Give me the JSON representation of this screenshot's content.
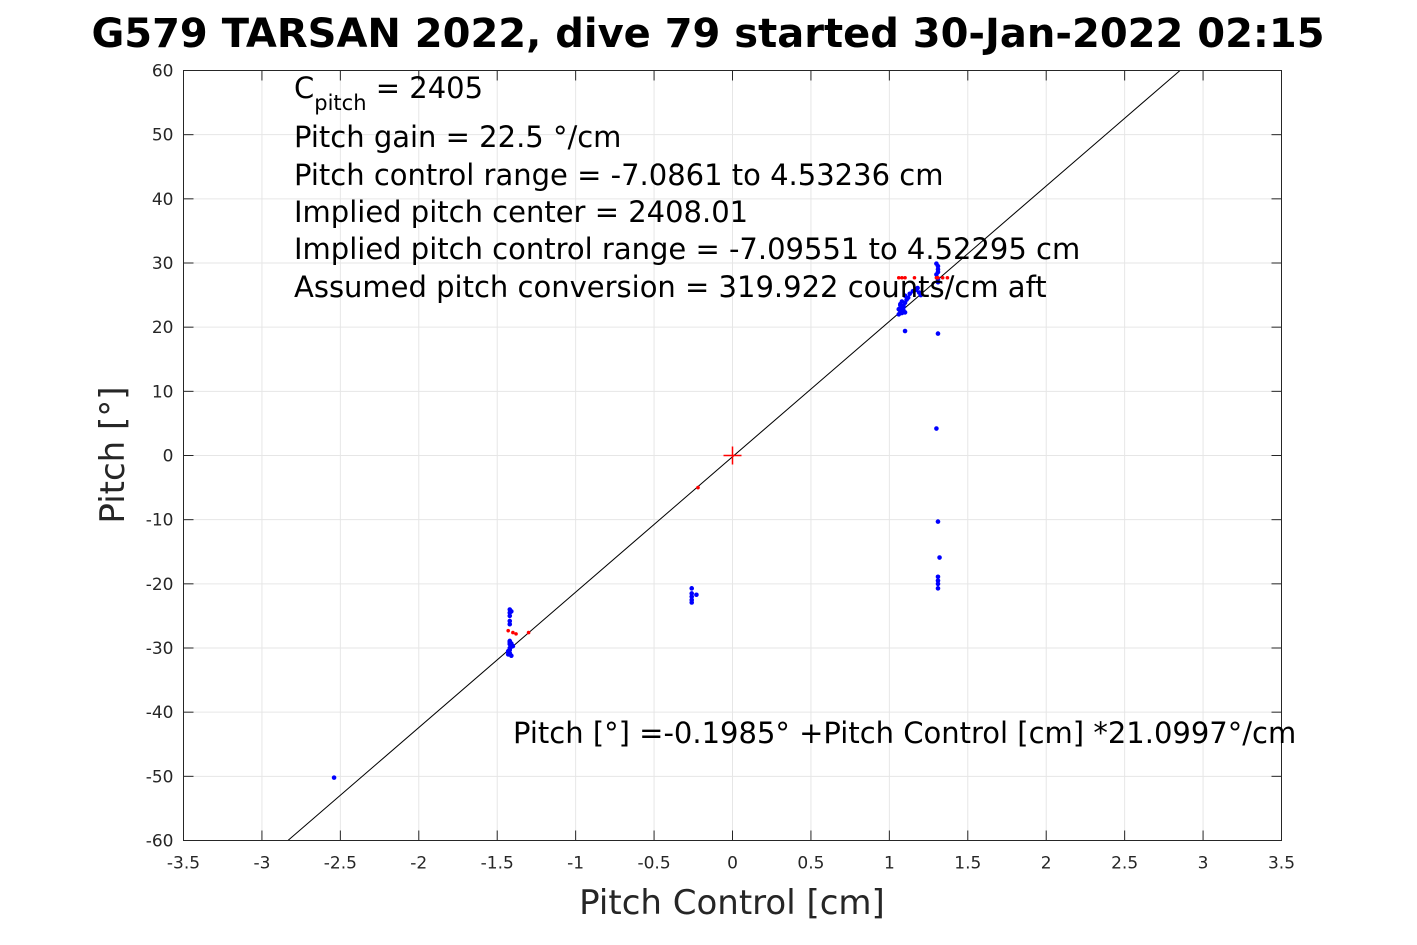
{
  "chart_data": {
    "type": "scatter",
    "title": "G579 TARSAN 2022, dive 79 started 30-Jan-2022 02:15",
    "xlabel": "Pitch Control [cm]",
    "ylabel": "Pitch [°]",
    "xlim": [
      -3.5,
      3.5
    ],
    "ylim": [
      -60,
      60
    ],
    "xticks": [
      -3.5,
      -3,
      -2.5,
      -2,
      -1.5,
      -1,
      -0.5,
      0,
      0.5,
      1,
      1.5,
      2,
      2.5,
      3,
      3.5
    ],
    "xtick_labels": [
      "-3.5",
      "-3",
      "-2.5",
      "-2",
      "-1.5",
      "-1",
      "-0.5",
      "0",
      "0.5",
      "1",
      "1.5",
      "2",
      "2.5",
      "3",
      "3.5"
    ],
    "yticks": [
      -60,
      -50,
      -40,
      -30,
      -20,
      -10,
      0,
      10,
      20,
      30,
      40,
      50,
      60
    ],
    "ytick_labels": [
      "-60",
      "-50",
      "-40",
      "-30",
      "-20",
      "-10",
      "0",
      "10",
      "20",
      "30",
      "40",
      "50",
      "60"
    ],
    "grid": true,
    "annotations": {
      "c_pitch_base": "C",
      "c_pitch_sub": "pitch",
      "c_pitch_value": " = 2405",
      "pitch_gain": "Pitch gain = 22.5 °/cm",
      "pitch_control_range": "Pitch control range = -7.0861 to 4.53236 cm",
      "implied_center": "Implied pitch center = 2408.01",
      "implied_range": "Implied pitch control range = -7.09551 to 4.52295 cm",
      "assumed_conversion": "Assumed pitch conversion = 319.922 counts/cm aft",
      "fit_equation": "Pitch [°] =-0.1985° +Pitch Control [cm] *21.0997°/cm"
    },
    "fit_line": {
      "intercept": -0.1985,
      "slope": 21.0997,
      "color": "#000000"
    },
    "center_marker": {
      "x": 0,
      "y": 0,
      "color": "#ff0000",
      "symbol": "plus"
    },
    "series": [
      {
        "color": "#0000ff",
        "x": [
          -2.54,
          -1.42,
          -1.42,
          -1.42,
          -1.42,
          -1.42,
          -1.42,
          -1.41,
          -1.41,
          -1.42,
          -1.42,
          -1.43,
          -1.43,
          -1.41,
          -1.42,
          -1.42,
          -1.41,
          -1.4,
          -1.41,
          -1.42,
          -1.43,
          -1.42,
          -1.41,
          -0.26,
          -0.26,
          -0.26,
          -0.26,
          -0.26,
          -0.23,
          1.06,
          1.07,
          1.08,
          1.09,
          1.07,
          1.08,
          1.1,
          1.06,
          1.07,
          1.09,
          1.1,
          1.11,
          1.12,
          1.08,
          1.09,
          1.07,
          1.1,
          1.13,
          1.15,
          1.17,
          1.18,
          1.19,
          1.2,
          1.1,
          1.3,
          1.31,
          1.31,
          1.31,
          1.3,
          1.31,
          1.31,
          1.3,
          1.31,
          1.32,
          1.31,
          1.31,
          1.31,
          1.31,
          1.31
        ],
        "y": [
          -50.2,
          -24.0,
          -24.5,
          -25.0,
          -25.8,
          -26.3,
          -29.0,
          -29.5,
          -29.8,
          -30.0,
          -30.3,
          -30.6,
          -31.0,
          -31.2,
          -29.2,
          -29.4,
          -29.6,
          -29.7,
          -29.3,
          -30.8,
          -30.5,
          -28.9,
          -24.3,
          -20.7,
          -21.5,
          -22.0,
          -22.5,
          -22.9,
          -21.7,
          22.0,
          22.5,
          23.0,
          23.3,
          23.6,
          24.0,
          22.3,
          22.8,
          23.4,
          22.6,
          23.8,
          24.3,
          24.6,
          22.2,
          23.1,
          22.9,
          24.9,
          25.2,
          25.6,
          25.8,
          26.1,
          25.4,
          25.0,
          19.4,
          28.2,
          28.6,
          29.0,
          29.5,
          29.9,
          27.5,
          19.0,
          4.2,
          -10.3,
          -15.9,
          -18.9,
          -19.5,
          -20.0,
          -20.7,
          27.0
        ],
        "marker_size": 4
      },
      {
        "color": "#ff0000",
        "x": [
          -1.43,
          -1.4,
          -1.38,
          -1.3,
          -0.22,
          1.06,
          1.08,
          1.1,
          1.16,
          1.3,
          1.31,
          1.34,
          1.37
        ],
        "y": [
          -27.3,
          -27.6,
          -27.8,
          -27.6,
          -5.0,
          27.7,
          27.7,
          27.7,
          27.7,
          27.7,
          27.7,
          27.7,
          27.7
        ],
        "marker_size": 3
      }
    ]
  }
}
